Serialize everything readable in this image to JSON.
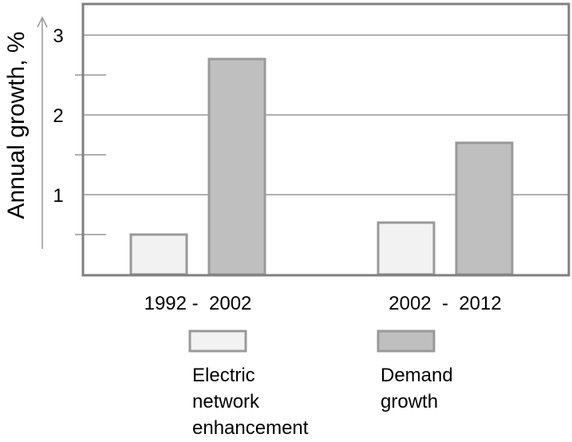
{
  "chart_data": {
    "type": "bar",
    "title": "",
    "xlabel": "",
    "ylabel": "Annual growth, %",
    "ylim": [
      0,
      3
    ],
    "y_ticks": [
      "1",
      "2",
      "3"
    ],
    "grid": true,
    "legend_position": "bottom",
    "categories": [
      "1992 -  2002",
      "2002  -  2012"
    ],
    "series": [
      {
        "name": "Electric\nnetwork\nenhancement",
        "values": [
          0.5,
          0.65
        ],
        "fill": "#f2f2f2",
        "stroke": "#999999"
      },
      {
        "name": "Demand\ngrowth",
        "values": [
          2.7,
          1.65
        ],
        "fill": "#bfbfbf",
        "stroke": "#999999"
      }
    ],
    "colors": {
      "frame": "#808080",
      "grid": "#808080",
      "axis_arrow": "#999999"
    }
  }
}
